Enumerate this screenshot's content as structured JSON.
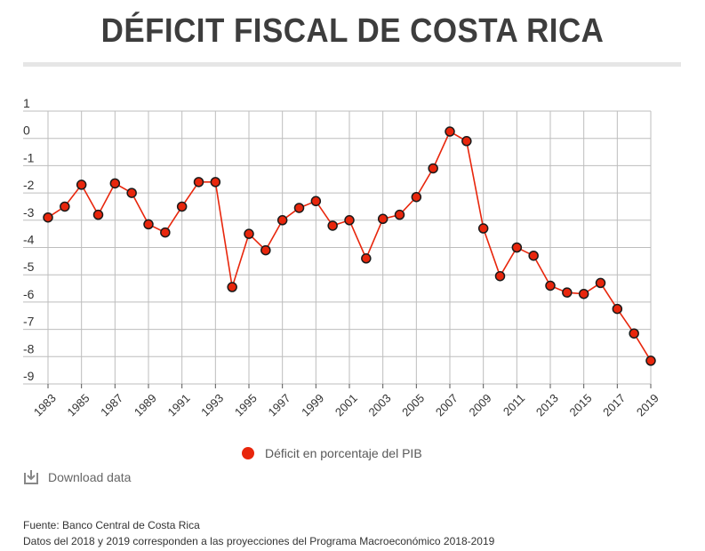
{
  "title": "DÉFICIT FISCAL DE COSTA RICA",
  "legend_label": "Déficit en porcentaje del PIB",
  "download_label": "Download data",
  "source": "Fuente: Banco Central de Costa Rica",
  "note": "Datos del 2018 y 2019 corresponden a las proyecciones del Programa Macroeconómico 2018-2019",
  "colors": {
    "series": "#e8260c",
    "marker_stroke": "#1a1a1a",
    "grid": "#bdbdbd",
    "title": "#3d3d3d"
  },
  "chart_data": {
    "type": "line",
    "title": "DÉFICIT FISCAL DE COSTA RICA",
    "xlabel": "",
    "ylabel": "",
    "ylim": [
      -9,
      1
    ],
    "yticks": [
      1,
      0,
      -1,
      -2,
      -3,
      -4,
      -5,
      -6,
      -7,
      -8,
      -9
    ],
    "xtick_labels": [
      "1983",
      "1985",
      "1987",
      "1989",
      "1991",
      "1993",
      "1995",
      "1997",
      "1999",
      "2001",
      "2003",
      "2005",
      "2007",
      "2009",
      "2011",
      "2013",
      "2015",
      "2017",
      "2019"
    ],
    "grid": true,
    "series": [
      {
        "name": "Déficit en porcentaje del PIB",
        "x": [
          1983,
          1984,
          1985,
          1986,
          1987,
          1988,
          1989,
          1990,
          1991,
          1992,
          1993,
          1994,
          1995,
          1996,
          1997,
          1998,
          1999,
          2000,
          2001,
          2002,
          2003,
          2004,
          2005,
          2006,
          2007,
          2008,
          2009,
          2010,
          2011,
          2012,
          2013,
          2014,
          2015,
          2016,
          2017,
          2018,
          2019
        ],
        "values": [
          -2.9,
          -2.5,
          -1.7,
          -2.8,
          -1.65,
          -2.0,
          -3.15,
          -3.45,
          -2.5,
          -1.6,
          -1.6,
          -5.45,
          -3.5,
          -4.1,
          -3.0,
          -2.55,
          -2.3,
          -3.2,
          -3.0,
          -4.4,
          -2.95,
          -2.8,
          -2.15,
          -1.1,
          0.25,
          -0.1,
          -3.3,
          -5.05,
          -4.0,
          -4.3,
          -5.4,
          -5.65,
          -5.7,
          -5.3,
          -6.25,
          -7.15,
          -8.15
        ]
      }
    ]
  }
}
